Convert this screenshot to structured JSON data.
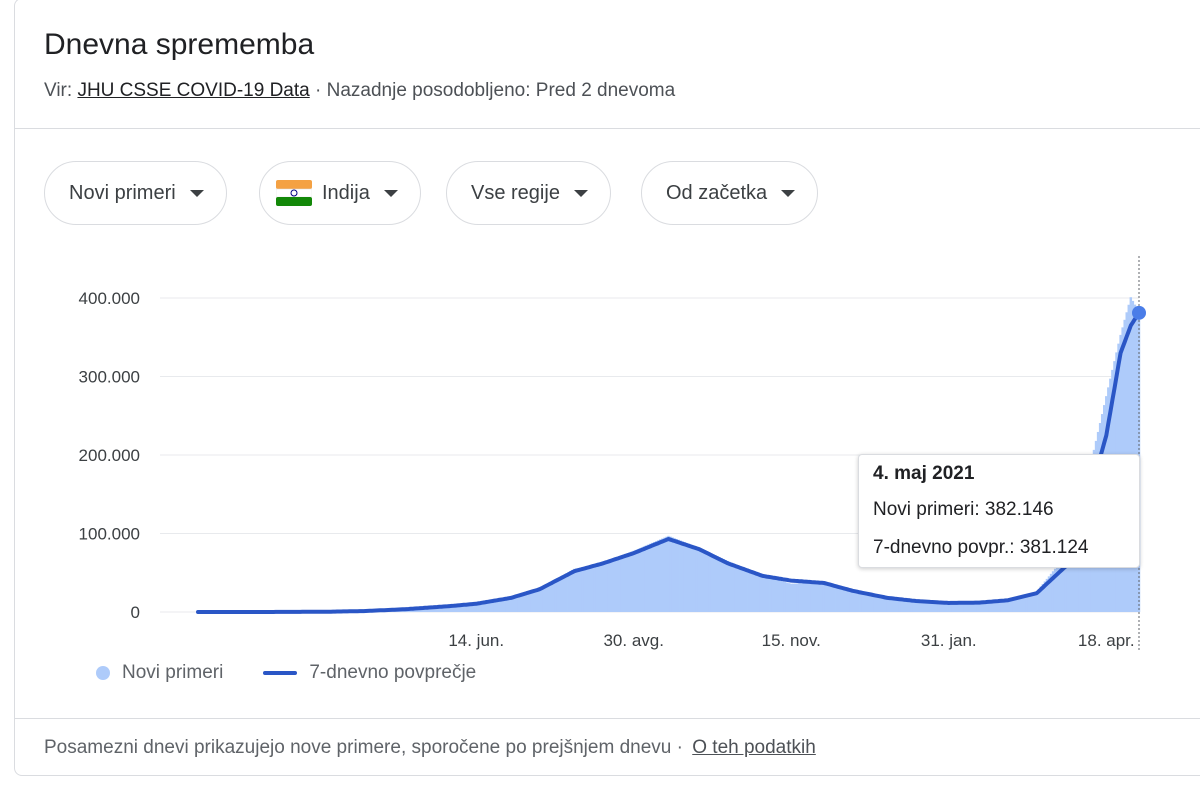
{
  "header": {
    "title": "Dnevna sprememba",
    "source_prefix": "Vir: ",
    "source_link": "JHU CSSE COVID-19 Data",
    "updated": " · Nazadnje posodobljeno: Pred 2 dnevoma"
  },
  "filters": {
    "metric": "Novi primeri",
    "country": "Indija",
    "region": "Vse regije",
    "range": "Od začetka"
  },
  "legend": {
    "bars_label": "Novi primeri",
    "line_label": "7-dnevno povprečje"
  },
  "tooltip": {
    "date": "4. maj 2021",
    "new_cases": "Novi primeri: 382.146",
    "avg": "7-dnevno povpr.: 381.124"
  },
  "footer": {
    "note": "Posamezni dnevi prikazujejo nove primere, sporočene po prejšnjem dnevu",
    "separator": " · ",
    "link": "O teh podatkih"
  },
  "colors": {
    "bars": "#aecbfa",
    "line": "#2a56c6",
    "grid": "#e8eaed",
    "flag_saffron": "#f4a143",
    "flag_green": "#138808",
    "flag_chakra": "#000080"
  },
  "chart_data": {
    "type": "bar",
    "title": "",
    "xlabel": "",
    "ylabel": "",
    "ylim": [
      0,
      400000
    ],
    "yticks": [
      0,
      100000,
      200000,
      300000,
      400000
    ],
    "ytick_labels": [
      "0",
      "100.000",
      "200.000",
      "300.000",
      "400.000"
    ],
    "xtick_labels": [
      "14. jun.",
      "30. avg.",
      "15. nov.",
      "31. jan.",
      "18. apr."
    ],
    "xtick_positions": [
      "2020-06-14",
      "2020-08-30",
      "2020-11-15",
      "2021-01-31",
      "2021-04-18"
    ],
    "x_start": "2020-01-30",
    "x_end": "2021-05-04",
    "grid": true,
    "legend_position": "bottom-left",
    "series": [
      {
        "name": "Novi primeri",
        "type": "bar",
        "points": [
          [
            "2020-01-30",
            0
          ],
          [
            "2020-03-01",
            0
          ],
          [
            "2020-04-01",
            400
          ],
          [
            "2020-04-20",
            1300
          ],
          [
            "2020-05-10",
            4000
          ],
          [
            "2020-06-01",
            8000
          ],
          [
            "2020-06-14",
            11000
          ],
          [
            "2020-07-01",
            19000
          ],
          [
            "2020-07-15",
            30000
          ],
          [
            "2020-08-01",
            55000
          ],
          [
            "2020-08-15",
            63000
          ],
          [
            "2020-08-30",
            78000
          ],
          [
            "2020-09-16",
            97000
          ],
          [
            "2020-10-01",
            82000
          ],
          [
            "2020-10-15",
            65000
          ],
          [
            "2020-11-01",
            46000
          ],
          [
            "2020-11-15",
            36000
          ],
          [
            "2020-12-01",
            38000
          ],
          [
            "2020-12-15",
            26000
          ],
          [
            "2021-01-01",
            20000
          ],
          [
            "2021-01-15",
            15000
          ],
          [
            "2021-01-31",
            11000
          ],
          [
            "2021-02-15",
            11000
          ],
          [
            "2021-03-01",
            15000
          ],
          [
            "2021-03-15",
            26000
          ],
          [
            "2021-04-01",
            81000
          ],
          [
            "2021-04-18",
            275000
          ],
          [
            "2021-04-25",
            353000
          ],
          [
            "2021-04-30",
            401000
          ],
          [
            "2021-05-04",
            382146
          ]
        ]
      },
      {
        "name": "7-dnevno povprečje",
        "type": "line",
        "points": [
          [
            "2020-01-30",
            0
          ],
          [
            "2020-03-01",
            0
          ],
          [
            "2020-04-01",
            300
          ],
          [
            "2020-04-20",
            1200
          ],
          [
            "2020-05-10",
            3500
          ],
          [
            "2020-06-01",
            7500
          ],
          [
            "2020-06-14",
            10500
          ],
          [
            "2020-07-01",
            18000
          ],
          [
            "2020-07-15",
            29000
          ],
          [
            "2020-08-01",
            52000
          ],
          [
            "2020-08-15",
            62000
          ],
          [
            "2020-08-30",
            75000
          ],
          [
            "2020-09-16",
            93000
          ],
          [
            "2020-10-01",
            80000
          ],
          [
            "2020-10-15",
            62000
          ],
          [
            "2020-11-01",
            46000
          ],
          [
            "2020-11-15",
            40000
          ],
          [
            "2020-12-01",
            37000
          ],
          [
            "2020-12-15",
            27000
          ],
          [
            "2021-01-01",
            18000
          ],
          [
            "2021-01-15",
            14000
          ],
          [
            "2021-01-31",
            11500
          ],
          [
            "2021-02-15",
            12000
          ],
          [
            "2021-03-01",
            15000
          ],
          [
            "2021-03-15",
            24000
          ],
          [
            "2021-04-01",
            65000
          ],
          [
            "2021-04-18",
            225000
          ],
          [
            "2021-04-25",
            330000
          ],
          [
            "2021-04-30",
            365000
          ],
          [
            "2021-05-04",
            381124
          ]
        ]
      }
    ]
  }
}
